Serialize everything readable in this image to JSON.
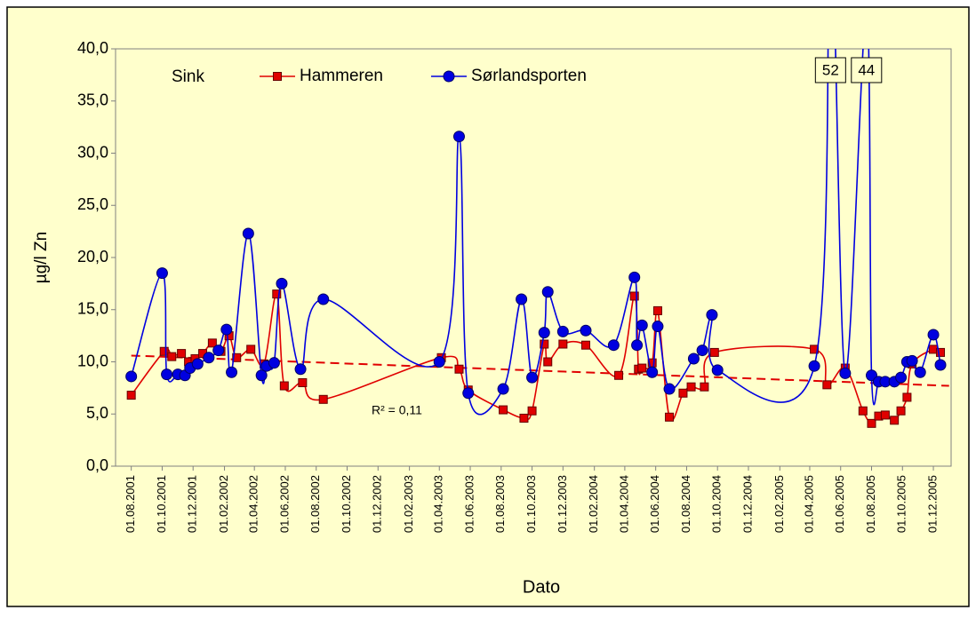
{
  "chart_data": {
    "type": "line",
    "subtitle": "Sink",
    "x_label": "Dato",
    "y_label": "µg/l Zn",
    "ylim": [
      0,
      40
    ],
    "yticks": [
      {
        "value": 0,
        "label": "0,0"
      },
      {
        "value": 5,
        "label": "5,0"
      },
      {
        "value": 10,
        "label": "10,0"
      },
      {
        "value": 15,
        "label": "15,0"
      },
      {
        "value": 20,
        "label": "20,0"
      },
      {
        "value": 25,
        "label": "25,0"
      },
      {
        "value": 30,
        "label": "30,0"
      },
      {
        "value": 35,
        "label": "35,0"
      },
      {
        "value": 40,
        "label": "40,0"
      }
    ],
    "xlim": [
      "01.07.2001",
      "05.01.2006"
    ],
    "xticks": [
      "01.08.2001",
      "01.10.2001",
      "01.12.2001",
      "01.02.2002",
      "01.04.2002",
      "01.06.2002",
      "01.08.2002",
      "01.10.2002",
      "01.12.2002",
      "01.02.2003",
      "01.04.2003",
      "01.06.2003",
      "01.08.2003",
      "01.10.2003",
      "01.12.2003",
      "01.02.2004",
      "01.04.2004",
      "01.06.2004",
      "01.08.2004",
      "01.10.2004",
      "01.12.2004",
      "01.02.2005",
      "01.04.2005",
      "01.06.2005",
      "01.08.2005",
      "01.10.2005",
      "01.12.2005"
    ],
    "series": [
      {
        "name": "Hammeren",
        "color": "#e00000",
        "marker": "square",
        "x": [
          "01.08.2001",
          "05.10.2001",
          "20.10.2001",
          "08.11.2001",
          "22.11.2001",
          "05.12.2001",
          "20.12.2001",
          "08.01.2002",
          "25.01.2002",
          "10.02.2002",
          "25.02.2002",
          "25.03.2002",
          "20.04.2002",
          "15.05.2002",
          "30.05.2002",
          "05.07.2002",
          "15.08.2002",
          "05.04.2003",
          "10.05.2003",
          "28.05.2003",
          "05.08.2003",
          "15.09.2003",
          "01.10.2003",
          "25.10.2003",
          "01.11.2003",
          "01.12.2003",
          "15.01.2004",
          "20.03.2004",
          "20.04.2004",
          "28.04.2004",
          "05.05.2004",
          "25.05.2004",
          "05.06.2004",
          "28.06.2004",
          "25.07.2004",
          "10.08.2004",
          "05.09.2004",
          "25.09.2004",
          "10.04.2005",
          "05.05.2005",
          "10.06.2005",
          "15.07.2005",
          "01.08.2005",
          "15.08.2005",
          "28.08.2005",
          "15.09.2005",
          "28.09.2005",
          "10.10.2005",
          "20.10.2005",
          "01.12.2005",
          "15.12.2005"
        ],
        "values": [
          6.8,
          11.0,
          10.5,
          10.8,
          10.0,
          10.3,
          10.8,
          11.8,
          11.0,
          12.5,
          10.4,
          11.2,
          9.8,
          16.5,
          7.7,
          8.0,
          6.4,
          10.4,
          9.3,
          7.3,
          5.4,
          4.6,
          5.3,
          11.7,
          10.0,
          11.7,
          11.6,
          8.7,
          16.3,
          9.3,
          9.4,
          9.9,
          14.9,
          4.7,
          7.0,
          7.6,
          7.6,
          10.9,
          11.2,
          7.8,
          9.4,
          5.3,
          4.1,
          4.8,
          4.9,
          4.4,
          5.3,
          6.6,
          9.8,
          11.2,
          10.9
        ]
      },
      {
        "name": "Sørlandsporten",
        "color": "#0000e0",
        "marker": "circle",
        "x": [
          "01.08.2001",
          "01.10.2001",
          "10.10.2001",
          "01.11.2001",
          "15.11.2001",
          "25.11.2001",
          "10.12.2001",
          "01.01.2002",
          "20.01.2002",
          "05.02.2002",
          "15.02.2002",
          "20.03.2002",
          "15.04.2002",
          "25.04.2002",
          "10.05.2002",
          "25.05.2002",
          "01.07.2002",
          "15.08.2002",
          "01.04.2003",
          "10.05.2003",
          "28.05.2003",
          "05.08.2003",
          "10.09.2003",
          "01.10.2003",
          "25.10.2003",
          "01.11.2003",
          "01.12.2003",
          "15.01.2004",
          "10.03.2004",
          "20.04.2004",
          "25.04.2004",
          "05.05.2004",
          "25.05.2004",
          "05.06.2004",
          "28.06.2004",
          "15.08.2004",
          "01.09.2004",
          "20.09.2004",
          "01.10.2004",
          "10.04.2005",
          "12.05.2005",
          "10.06.2005",
          "22.07.2005",
          "01.08.2005",
          "15.08.2005",
          "28.08.2005",
          "15.09.2005",
          "28.09.2005",
          "10.10.2005",
          "20.10.2005",
          "05.11.2005",
          "01.12.2005",
          "15.12.2005"
        ],
        "values": [
          8.6,
          18.5,
          8.8,
          8.8,
          8.7,
          9.4,
          9.8,
          10.4,
          11.1,
          13.1,
          9.0,
          22.3,
          8.7,
          9.6,
          9.9,
          17.5,
          9.3,
          16.0,
          10.0,
          31.6,
          7.0,
          7.4,
          16.0,
          8.5,
          12.8,
          16.7,
          12.9,
          13.0,
          11.6,
          18.1,
          11.6,
          13.5,
          9.0,
          13.4,
          7.4,
          10.3,
          11.1,
          14.5,
          9.2,
          9.6,
          52,
          8.9,
          44,
          8.7,
          8.1,
          8.1,
          8.1,
          8.5,
          10.0,
          10.1,
          9.0,
          12.6,
          9.7
        ],
        "value_labels": [
          null,
          null,
          null,
          null,
          null,
          null,
          null,
          null,
          null,
          null,
          null,
          null,
          null,
          null,
          null,
          null,
          null,
          null,
          null,
          null,
          null,
          null,
          null,
          null,
          null,
          null,
          null,
          null,
          null,
          null,
          null,
          null,
          null,
          null,
          null,
          null,
          null,
          null,
          null,
          null,
          "52",
          null,
          "44",
          null,
          null,
          null,
          null,
          null,
          null,
          null,
          null,
          null,
          null
        ]
      }
    ],
    "trendline": {
      "x": [
        "01.08.2001",
        "01.01.2006"
      ],
      "values": [
        10.6,
        7.7
      ],
      "color": "#e00000",
      "label": "R² = 0,11"
    },
    "grid": false
  }
}
